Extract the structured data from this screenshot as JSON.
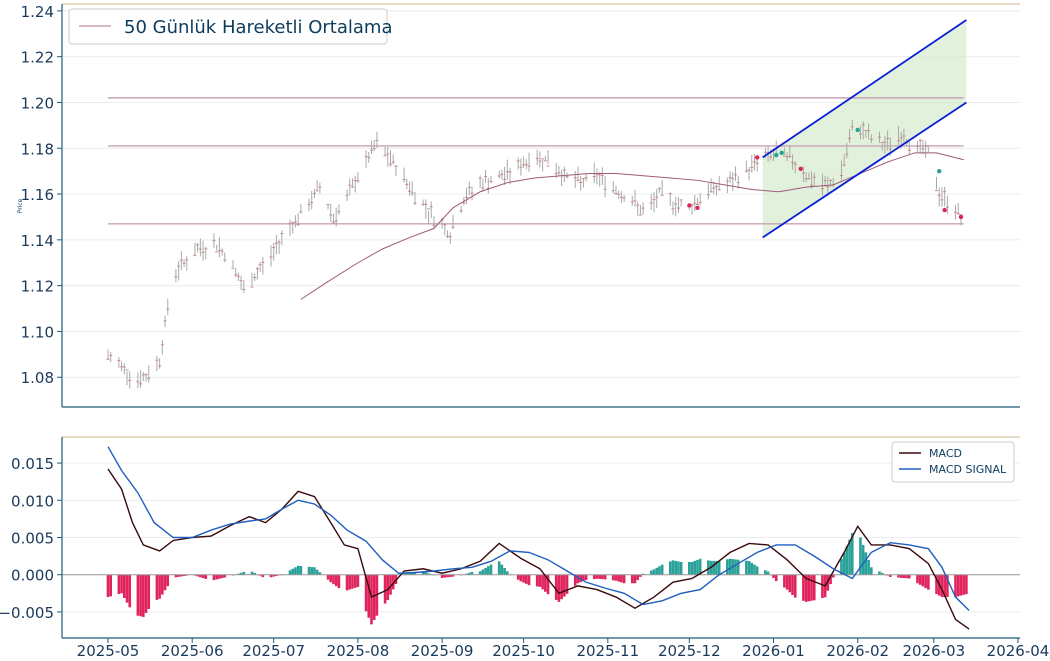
{
  "chart_data": [
    {
      "type": "candlestick",
      "ylabel": "Price",
      "ylim": [
        1.067,
        1.243
      ],
      "yticks": [
        "1.08",
        "1.10",
        "1.12",
        "1.14",
        "1.16",
        "1.18",
        "1.20",
        "1.22",
        "1.24"
      ],
      "yticks_values": [
        1.08,
        1.1,
        1.12,
        1.14,
        1.16,
        1.18,
        1.2,
        1.22,
        1.24
      ],
      "xlim": [
        "2025-05-01",
        "2026-04-01"
      ],
      "legend": {
        "placement": "top-left",
        "entries": [
          "50 Günlük Hareketli Ortalama"
        ]
      },
      "grid": true,
      "horizontal_levels": [
        1.202,
        1.181,
        1.147
      ],
      "channel": {
        "upper": {
          "x": [
            "2025-12-28",
            "2026-03-13"
          ],
          "y": [
            1.176,
            1.236
          ]
        },
        "lower": {
          "x": [
            "2025-12-28",
            "2026-03-13"
          ],
          "y": [
            1.141,
            1.2
          ]
        }
      },
      "colors": {
        "ma": "#a05a7a",
        "levels": "#c8a2b4",
        "channel": "#0a1fd6",
        "channel_fill": "#d8ecd0",
        "candle": "#a8a8a8",
        "axes": "#1f5a7a"
      },
      "price_anchors": {
        "x": [
          "2025-05-01",
          "2025-05-06",
          "2025-05-11",
          "2025-05-15",
          "2025-05-20",
          "2025-05-25",
          "2025-06-01",
          "2025-06-05",
          "2025-06-10",
          "2025-06-15",
          "2025-06-20",
          "2025-06-25",
          "2025-06-30",
          "2025-07-06",
          "2025-07-12",
          "2025-07-18",
          "2025-07-23",
          "2025-07-28",
          "2025-08-01",
          "2025-08-08",
          "2025-08-15",
          "2025-08-22",
          "2025-08-29",
          "2025-09-04",
          "2025-09-09",
          "2025-09-15",
          "2025-09-22",
          "2025-09-28",
          "2025-10-04",
          "2025-10-10",
          "2025-10-16",
          "2025-10-22",
          "2025-10-28",
          "2025-11-03",
          "2025-11-09",
          "2025-11-15",
          "2025-11-20",
          "2025-11-26",
          "2025-12-01",
          "2025-12-06",
          "2025-12-11",
          "2025-12-16",
          "2025-12-22",
          "2025-12-28",
          "2026-01-03",
          "2026-01-09",
          "2026-01-15",
          "2026-01-21",
          "2026-01-26",
          "2026-01-31",
          "2026-02-05",
          "2026-02-11",
          "2026-02-17",
          "2026-02-22",
          "2026-02-27",
          "2026-03-03",
          "2026-03-08",
          "2026-03-11"
        ],
        "y": [
          1.089,
          1.085,
          1.079,
          1.08,
          1.088,
          1.125,
          1.134,
          1.137,
          1.138,
          1.131,
          1.118,
          1.126,
          1.133,
          1.145,
          1.152,
          1.163,
          1.15,
          1.158,
          1.168,
          1.182,
          1.172,
          1.16,
          1.15,
          1.143,
          1.158,
          1.165,
          1.167,
          1.171,
          1.176,
          1.175,
          1.168,
          1.165,
          1.168,
          1.163,
          1.158,
          1.151,
          1.16,
          1.156,
          1.154,
          1.16,
          1.163,
          1.165,
          1.17,
          1.176,
          1.178,
          1.174,
          1.166,
          1.163,
          1.17,
          1.192,
          1.185,
          1.181,
          1.186,
          1.181,
          1.178,
          1.16,
          1.155,
          1.15
        ]
      },
      "ma50": {
        "x": [
          "2025-07-11",
          "2025-07-20",
          "2025-08-01",
          "2025-08-10",
          "2025-08-20",
          "2025-08-29",
          "2025-09-05",
          "2025-09-15",
          "2025-09-25",
          "2025-10-05",
          "2025-10-15",
          "2025-10-25",
          "2025-11-04",
          "2025-11-14",
          "2025-11-24",
          "2025-12-04",
          "2025-12-14",
          "2025-12-24",
          "2026-01-03",
          "2026-01-13",
          "2026-01-23",
          "2026-02-02",
          "2026-02-12",
          "2026-02-22",
          "2026-03-02",
          "2026-03-12"
        ],
        "y": [
          1.114,
          1.121,
          1.13,
          1.136,
          1.141,
          1.145,
          1.154,
          1.161,
          1.165,
          1.167,
          1.168,
          1.169,
          1.169,
          1.168,
          1.167,
          1.166,
          1.164,
          1.162,
          1.161,
          1.163,
          1.164,
          1.169,
          1.174,
          1.178,
          1.178,
          1.175
        ]
      },
      "markers": {
        "teal": [
          [
            "2026-01-02",
            1.177
          ],
          [
            "2026-01-04",
            1.178
          ],
          [
            "2026-02-01",
            1.188
          ],
          [
            "2026-03-03",
            1.17
          ]
        ],
        "red": [
          [
            "2025-12-26",
            1.176
          ],
          [
            "2026-01-11",
            1.171
          ],
          [
            "2025-12-01",
            1.155
          ],
          [
            "2025-12-04",
            1.154
          ],
          [
            "2026-03-05",
            1.153
          ],
          [
            "2026-03-11",
            1.15
          ]
        ]
      }
    },
    {
      "type": "line",
      "ylim": [
        -0.0085,
        0.0185
      ],
      "yticks": [
        "−0.005",
        "0.000",
        "0.005",
        "0.010",
        "0.015"
      ],
      "yticks_values": [
        -0.005,
        0.0,
        0.005,
        0.01,
        0.015
      ],
      "xticks": [
        "2025-05",
        "2025-06",
        "2025-07",
        "2025-08",
        "2025-09",
        "2025-10",
        "2025-11",
        "2025-12",
        "2026-01",
        "2026-02",
        "2026-03",
        "2026-04"
      ],
      "legend": {
        "placement": "top-right",
        "entries": [
          "MACD",
          "MACD SIGNAL"
        ]
      },
      "grid": true,
      "colors": {
        "macd": "#3a0a0a",
        "signal": "#1f5fbf",
        "hist_pos": "#2aa198",
        "hist_neg": "#e0245e",
        "zero": "#9a9a9a"
      },
      "series": [
        {
          "name": "MACD",
          "x": [
            "2025-05-01",
            "2025-05-06",
            "2025-05-10",
            "2025-05-14",
            "2025-05-20",
            "2025-05-25",
            "2025-06-01",
            "2025-06-08",
            "2025-06-15",
            "2025-06-22",
            "2025-06-28",
            "2025-07-04",
            "2025-07-10",
            "2025-07-16",
            "2025-07-22",
            "2025-07-27",
            "2025-08-01",
            "2025-08-06",
            "2025-08-12",
            "2025-08-18",
            "2025-08-25",
            "2025-09-01",
            "2025-09-08",
            "2025-09-15",
            "2025-09-22",
            "2025-09-30",
            "2025-10-07",
            "2025-10-14",
            "2025-10-21",
            "2025-10-28",
            "2025-11-04",
            "2025-11-11",
            "2025-11-18",
            "2025-11-25",
            "2025-12-02",
            "2025-12-09",
            "2025-12-16",
            "2025-12-23",
            "2025-12-30",
            "2026-01-06",
            "2026-01-13",
            "2026-01-20",
            "2026-01-27",
            "2026-02-01",
            "2026-02-06",
            "2026-02-13",
            "2026-02-20",
            "2026-02-27",
            "2026-03-04",
            "2026-03-09",
            "2026-03-14"
          ],
          "y": [
            0.0142,
            0.0115,
            0.007,
            0.004,
            0.0032,
            0.0046,
            0.005,
            0.0052,
            0.0066,
            0.0078,
            0.007,
            0.0088,
            0.0112,
            0.0105,
            0.007,
            0.004,
            0.0035,
            -0.003,
            -0.002,
            0.0005,
            0.0008,
            0.0002,
            0.0008,
            0.0018,
            0.0042,
            0.0022,
            0.0008,
            -0.0025,
            -0.0015,
            -0.002,
            -0.003,
            -0.0045,
            -0.003,
            -0.001,
            -0.0005,
            0.001,
            0.003,
            0.0042,
            0.004,
            0.002,
            -0.0005,
            -0.0015,
            0.003,
            0.0065,
            0.004,
            0.004,
            0.0035,
            0.0015,
            -0.002,
            -0.006,
            -0.0073
          ]
        },
        {
          "name": "MACD SIGNAL",
          "x": [
            "2025-05-01",
            "2025-05-06",
            "2025-05-12",
            "2025-05-18",
            "2025-05-25",
            "2025-06-01",
            "2025-06-08",
            "2025-06-15",
            "2025-06-22",
            "2025-06-28",
            "2025-07-04",
            "2025-07-10",
            "2025-07-16",
            "2025-07-22",
            "2025-07-28",
            "2025-08-04",
            "2025-08-10",
            "2025-08-16",
            "2025-08-22",
            "2025-08-29",
            "2025-09-05",
            "2025-09-12",
            "2025-09-19",
            "2025-09-26",
            "2025-10-03",
            "2025-10-10",
            "2025-10-17",
            "2025-10-24",
            "2025-10-31",
            "2025-11-07",
            "2025-11-14",
            "2025-11-21",
            "2025-11-28",
            "2025-12-05",
            "2025-12-12",
            "2025-12-19",
            "2025-12-26",
            "2026-01-02",
            "2026-01-09",
            "2026-01-16",
            "2026-01-23",
            "2026-01-30",
            "2026-02-06",
            "2026-02-13",
            "2026-02-20",
            "2026-02-27",
            "2026-03-04",
            "2026-03-09",
            "2026-03-14"
          ],
          "y": [
            0.0172,
            0.014,
            0.011,
            0.007,
            0.005,
            0.005,
            0.006,
            0.0068,
            0.0072,
            0.0075,
            0.0088,
            0.01,
            0.0095,
            0.008,
            0.006,
            0.0045,
            0.002,
            0.0002,
            0.0003,
            0.0005,
            0.0008,
            0.001,
            0.0018,
            0.0032,
            0.003,
            0.002,
            0.0005,
            -0.001,
            -0.0018,
            -0.0025,
            -0.004,
            -0.0035,
            -0.0025,
            -0.002,
            0.0,
            0.0015,
            0.003,
            0.004,
            0.004,
            0.0025,
            0.0008,
            -0.0005,
            0.003,
            0.0043,
            0.004,
            0.0035,
            0.001,
            -0.003,
            -0.0048
          ]
        }
      ]
    }
  ]
}
